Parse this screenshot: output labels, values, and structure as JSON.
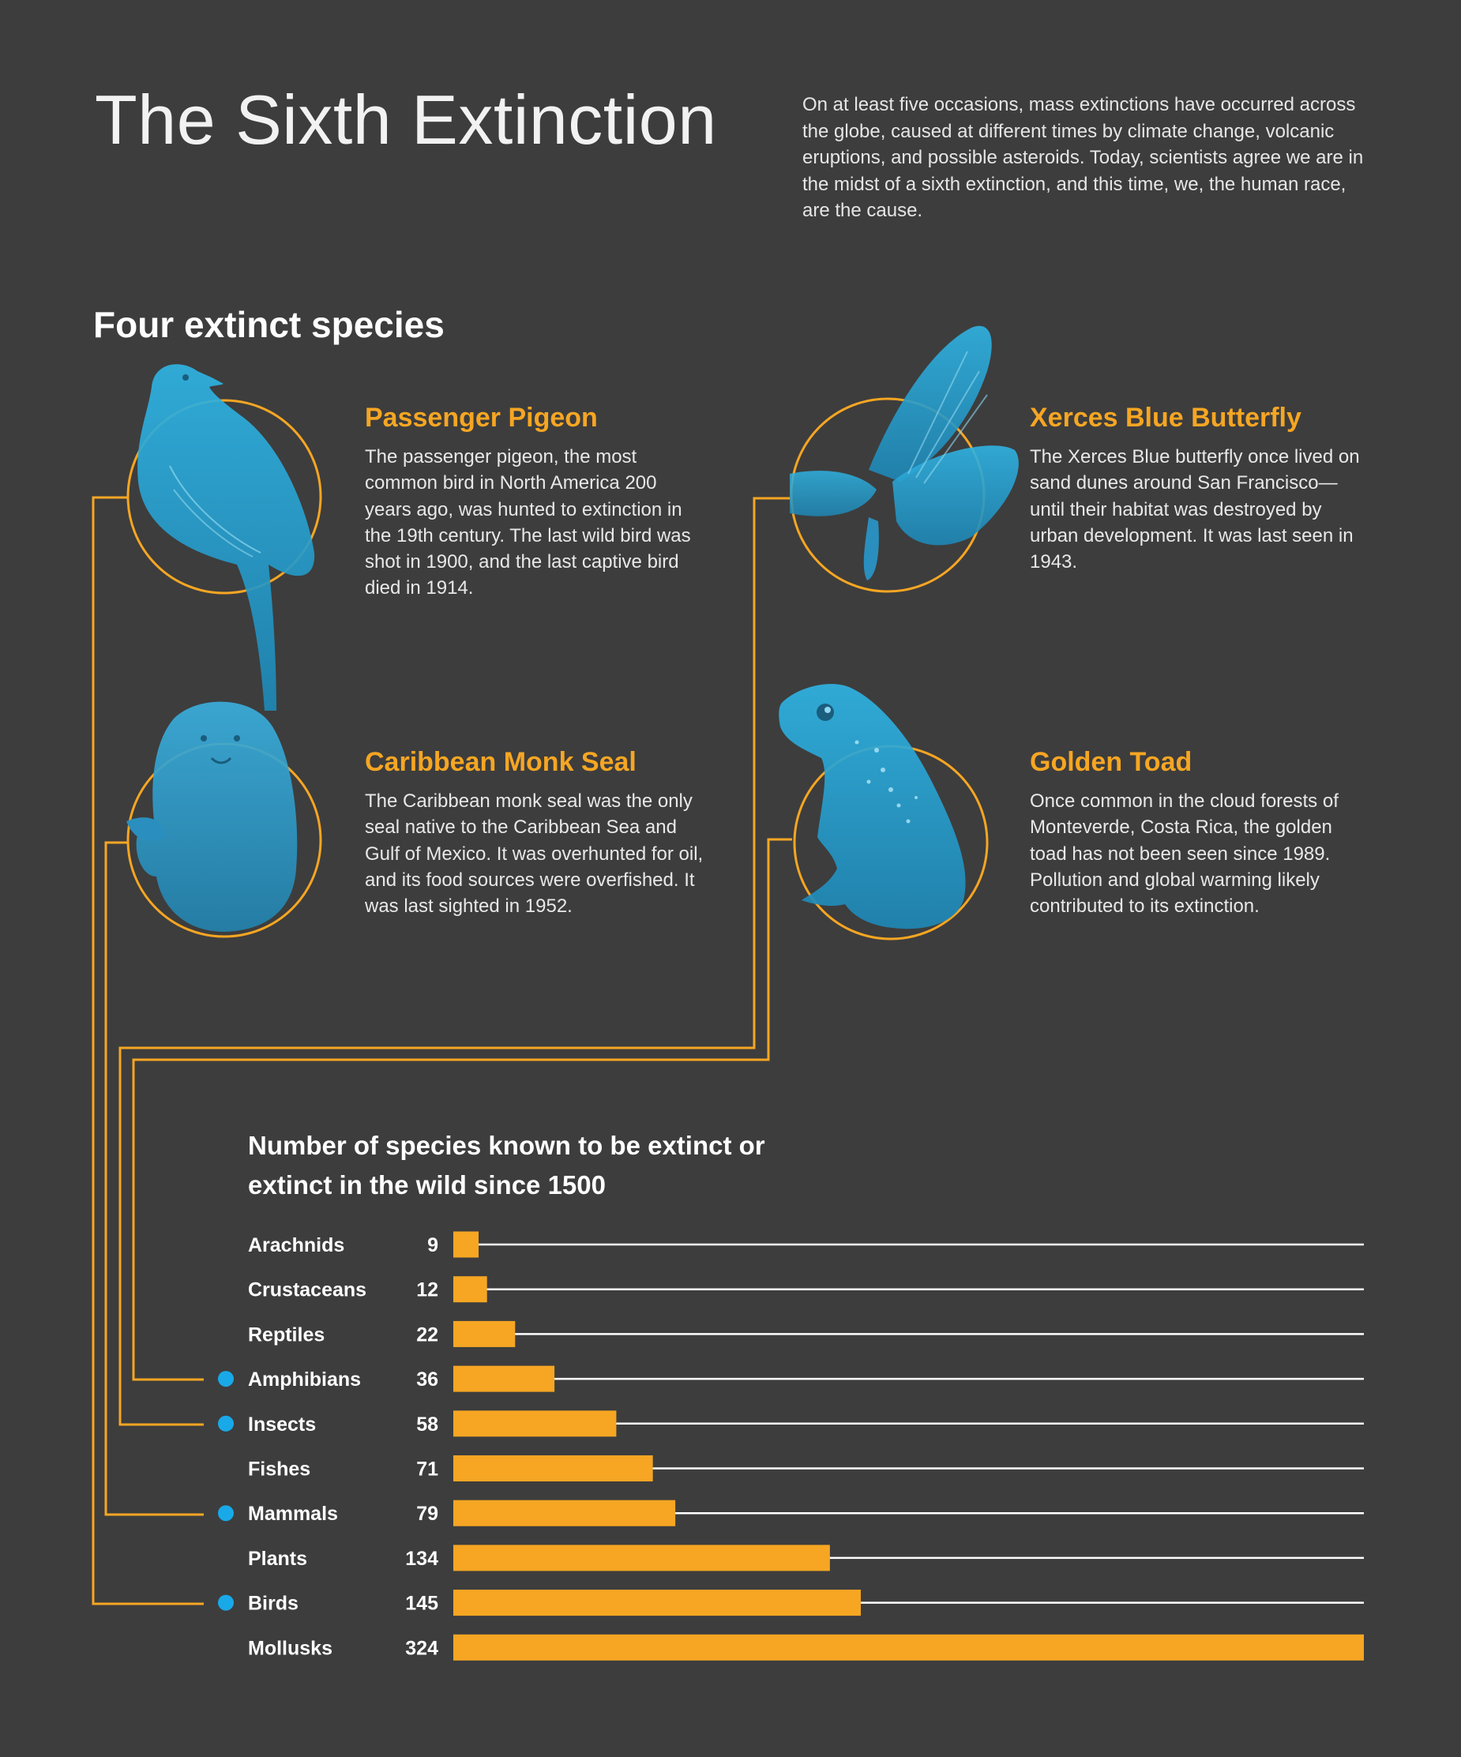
{
  "header": {
    "title": "The Sixth Extinction",
    "intro": "On at least five occasions, mass extinctions have occurred across the globe, caused at different times by climate change, volcanic eruptions, and possible asteroids. Today, scientists agree we are in the midst of a sixth extinction, and this time, we, the human race, are the cause."
  },
  "species_section": {
    "title": "Four extinct species",
    "species": [
      {
        "name": "Passenger Pigeon",
        "group": "Birds",
        "icon": "pigeon-icon",
        "text": "The passenger pigeon, the most common bird in North America 200 years ago, was hunted to extinction in the 19th century. The last wild bird was shot in 1900, and the last captive bird died in 1914."
      },
      {
        "name": "Caribbean Monk Seal",
        "group": "Mammals",
        "icon": "seal-icon",
        "text": "The Caribbean monk seal was the only seal native to the Caribbean Sea and Gulf of Mexico. It was overhunted for oil, and its food sources were overfished. It was last sighted in 1952."
      },
      {
        "name": "Xerces Blue Butterfly",
        "group": "Insects",
        "icon": "butterfly-icon",
        "text": "The Xerces Blue butterfly once lived on sand dunes around San Francisco—until their habitat was destroyed by urban development. It was last seen in 1943."
      },
      {
        "name": "Golden Toad",
        "group": "Amphibians",
        "icon": "toad-icon",
        "text": "Once common in the cloud forests of Monteverde, Costa Rica, the golden toad has not been seen since 1989. Pollution and global warming likely contributed to its extinction."
      }
    ]
  },
  "colors": {
    "background": "#3d3d3d",
    "accent_orange": "#f6a623",
    "animal_blue": "#2aa6d6",
    "marker_blue": "#19a9e8",
    "track_line": "#ffffff"
  },
  "chart_data": {
    "type": "bar",
    "orientation": "horizontal",
    "title": "Number of species known to be extinct or extinct in the wild since 1500",
    "categories": [
      "Arachnids",
      "Crustaceans",
      "Reptiles",
      "Amphibians",
      "Insects",
      "Fishes",
      "Mammals",
      "Plants",
      "Birds",
      "Mollusks"
    ],
    "values": [
      9,
      12,
      22,
      36,
      58,
      71,
      79,
      134,
      145,
      324
    ],
    "highlighted": [
      "Amphibians",
      "Insects",
      "Mammals",
      "Birds"
    ],
    "xlim": [
      0,
      324
    ],
    "grid": false,
    "bar_color": "#f6a623"
  }
}
